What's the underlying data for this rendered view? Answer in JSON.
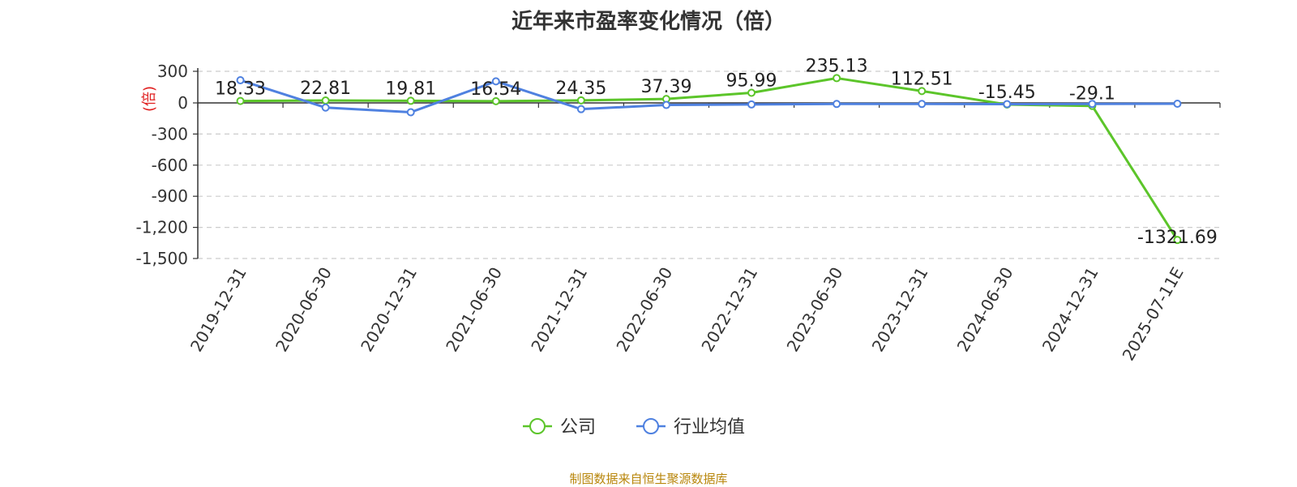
{
  "chart_data": {
    "type": "line",
    "title": "近年来市盈率变化情况（倍）",
    "ylabel": "(倍)",
    "xlabel": "",
    "categories": [
      "2019-12-31",
      "2020-06-30",
      "2020-12-31",
      "2021-06-30",
      "2021-12-31",
      "2022-06-30",
      "2022-12-31",
      "2023-06-30",
      "2023-12-31",
      "2024-06-30",
      "2024-12-31",
      "2025-07-11E"
    ],
    "ylim": [
      -1500,
      300
    ],
    "yticks": [
      300,
      0,
      -300,
      -600,
      -900,
      -1200,
      -1500
    ],
    "ytick_labels": [
      "300",
      "0",
      "-300",
      "-600",
      "-900",
      "-1,200",
      "-1,500"
    ],
    "grid": true,
    "legend_position": "bottom",
    "series": [
      {
        "name": "公司",
        "color": "#5cc52a",
        "values": [
          18.33,
          22.81,
          19.81,
          16.54,
          24.35,
          37.39,
          95.99,
          235.13,
          112.51,
          -15.45,
          -29.1,
          -1321.69
        ],
        "labels": [
          "18.33",
          "22.81",
          "19.81",
          "16.54",
          "24.35",
          "37.39",
          "95.99",
          "235.13",
          "112.51",
          "-15.45",
          "-29.1",
          "-1321.69"
        ]
      },
      {
        "name": "行业均值",
        "color": "#4f81e0",
        "values": [
          215,
          -45,
          -90,
          205,
          -60,
          -20,
          -15,
          -10,
          -10,
          -12,
          -10,
          -8
        ]
      }
    ]
  },
  "source": "制图数据来自恒生聚源数据库"
}
